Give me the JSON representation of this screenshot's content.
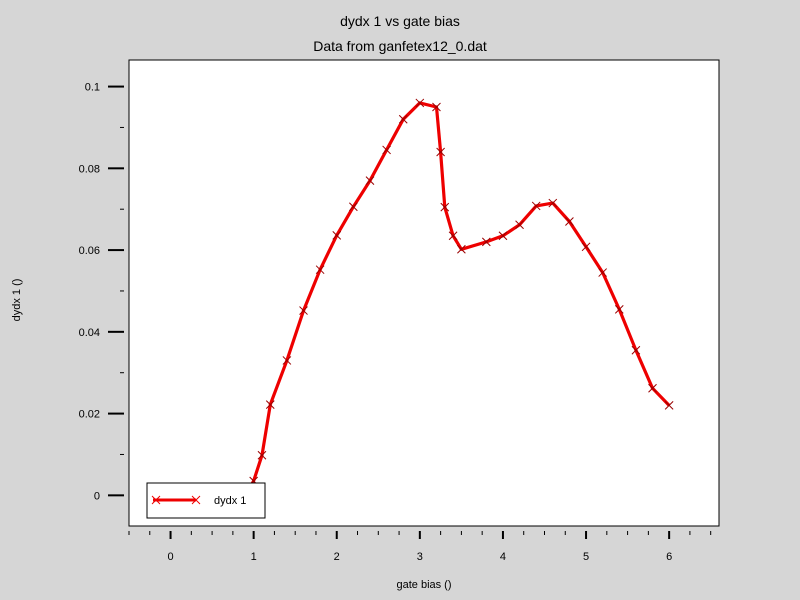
{
  "chart_data": {
    "type": "line",
    "title": "dydx 1 vs gate bias",
    "subtitle": "Data from ganfetex12_0.dat",
    "xlabel": "gate bias ()",
    "ylabel": "dydx 1 ()",
    "xlim": [
      -0.5,
      6.6
    ],
    "ylim": [
      -0.0075,
      0.1065
    ],
    "x_ticks": [
      0,
      1,
      2,
      3,
      4,
      5,
      6
    ],
    "x_tick_labels": [
      "0",
      "1",
      "2",
      "3",
      "4",
      "5",
      "6"
    ],
    "y_ticks": [
      0,
      0.02,
      0.04,
      0.06,
      0.08,
      0.1
    ],
    "y_tick_labels": [
      "0",
      "0.02",
      "0.04",
      "0.06",
      "0.08",
      "0.1"
    ],
    "grid": false,
    "legend_position": "bottom-left",
    "series": [
      {
        "name": "dydx 1",
        "color": "#ee0000",
        "marker": "x",
        "points": [
          [
            0.9,
            0.0
          ],
          [
            1.0,
            0.0035
          ],
          [
            1.1,
            0.0098
          ],
          [
            1.2,
            0.0222
          ],
          [
            1.4,
            0.033
          ],
          [
            1.6,
            0.0452
          ],
          [
            1.8,
            0.0552
          ],
          [
            2.0,
            0.0636
          ],
          [
            2.2,
            0.0706
          ],
          [
            2.4,
            0.077
          ],
          [
            2.6,
            0.0845
          ],
          [
            2.8,
            0.092
          ],
          [
            3.0,
            0.096
          ],
          [
            3.2,
            0.095
          ],
          [
            3.25,
            0.084
          ],
          [
            3.3,
            0.0705
          ],
          [
            3.4,
            0.0635
          ],
          [
            3.5,
            0.0602
          ],
          [
            3.8,
            0.062
          ],
          [
            4.0,
            0.0635
          ],
          [
            4.2,
            0.0662
          ],
          [
            4.4,
            0.0708
          ],
          [
            4.6,
            0.0715
          ],
          [
            4.8,
            0.067
          ],
          [
            5.0,
            0.0608
          ],
          [
            5.2,
            0.0545
          ],
          [
            5.4,
            0.0455
          ],
          [
            5.6,
            0.0355
          ],
          [
            5.8,
            0.0262
          ],
          [
            6.0,
            0.022
          ]
        ]
      }
    ]
  }
}
